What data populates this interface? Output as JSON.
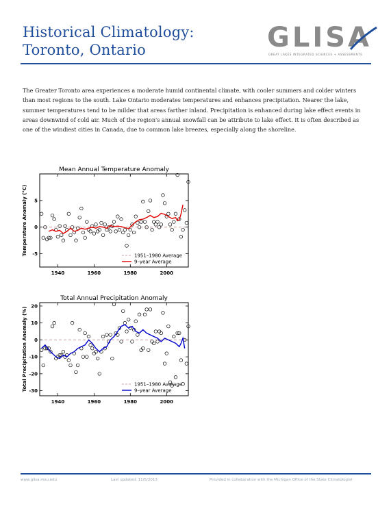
{
  "header": {
    "title_line1": "Historical Climatology:",
    "title_line2": "Toronto, Ontario",
    "logo_text": "GLISA",
    "logo_tagline": "GREAT LAKES INTEGRATED SCIENCES + ASSESSMENTS"
  },
  "intro": "The Greater Toronto area experiences a moderate humid continental climate, with cooler summers and colder winters than most regions to the south. Lake Ontario moderates temperatures and enhances precipitation. Nearer the lake, summer temperatures tend to be milder that areas farther inland. Precipitation is enhanced during lake effect events in areas downwind of cold air. Much of the region's annual snowfall can be attribute to lake effect. It is often described as one of the windiest cities in Canada, due to common lake breezes, especially along the shoreline.",
  "footer": {
    "website": "www.glisa.msu.edu",
    "updated": "Last updated: 11/5/2013",
    "credit": "Provided in collaboration with the Michigan Office of the State Climatologist"
  },
  "colors": {
    "title": "#1f4e9c",
    "temp_line": "#e00000",
    "precip_line": "#0000cc",
    "baseline": "#c8a0a0"
  },
  "chart_data": [
    {
      "type": "scatter",
      "title": "Mean Annual Temperature Anomaly",
      "ylabel": "Temperature Anomaly (°C)",
      "xlabel": "",
      "xlim": [
        1930,
        2012
      ],
      "ylim": [
        -7.5,
        10
      ],
      "xticks": [
        1940,
        1960,
        1980,
        2000
      ],
      "yticks": [
        -5,
        0,
        5
      ],
      "legend": [
        "1951–1980 Average",
        "9–year Average"
      ],
      "legend_position": "bottom-right",
      "baseline": 0,
      "points": [
        [
          1931,
          2.5
        ],
        [
          1932,
          -2.0
        ],
        [
          1933,
          0.0
        ],
        [
          1934,
          -2.3
        ],
        [
          1935,
          -2.0
        ],
        [
          1936,
          -2.0
        ],
        [
          1937,
          2.2
        ],
        [
          1938,
          1.5
        ],
        [
          1939,
          -0.5
        ],
        [
          1940,
          -1.8
        ],
        [
          1941,
          0.2
        ],
        [
          1942,
          -1.5
        ],
        [
          1943,
          -2.5
        ],
        [
          1944,
          0.2
        ],
        [
          1945,
          -0.5
        ],
        [
          1946,
          2.5
        ],
        [
          1947,
          -1.5
        ],
        [
          1948,
          0.0
        ],
        [
          1949,
          -1.0
        ],
        [
          1950,
          -2.5
        ],
        [
          1951,
          -0.2
        ],
        [
          1952,
          1.8
        ],
        [
          1953,
          3.5
        ],
        [
          1954,
          -1.0
        ],
        [
          1955,
          -2.0
        ],
        [
          1956,
          1.0
        ],
        [
          1957,
          -0.5
        ],
        [
          1958,
          -0.8
        ],
        [
          1959,
          0.2
        ],
        [
          1960,
          -1.2
        ],
        [
          1961,
          0.5
        ],
        [
          1962,
          -0.8
        ],
        [
          1963,
          -0.5
        ],
        [
          1964,
          0.8
        ],
        [
          1965,
          -1.5
        ],
        [
          1966,
          0.5
        ],
        [
          1967,
          -0.5
        ],
        [
          1968,
          0.0
        ],
        [
          1969,
          -0.8
        ],
        [
          1970,
          0.2
        ],
        [
          1971,
          1.0
        ],
        [
          1972,
          -0.8
        ],
        [
          1973,
          2.0
        ],
        [
          1974,
          -0.5
        ],
        [
          1975,
          1.5
        ],
        [
          1976,
          -1.0
        ],
        [
          1977,
          -0.5
        ],
        [
          1978,
          -3.5
        ],
        [
          1979,
          -1.5
        ],
        [
          1980,
          -0.5
        ],
        [
          1981,
          0.5
        ],
        [
          1982,
          -1.0
        ],
        [
          1983,
          2.0
        ],
        [
          1984,
          0.8
        ],
        [
          1985,
          0.0
        ],
        [
          1986,
          1.0
        ],
        [
          1987,
          4.8
        ],
        [
          1988,
          1.0
        ],
        [
          1989,
          0.0
        ],
        [
          1990,
          3.0
        ],
        [
          1991,
          5.0
        ],
        [
          1992,
          -0.5
        ],
        [
          1993,
          1.0
        ],
        [
          1994,
          0.5
        ],
        [
          1995,
          1.0
        ],
        [
          1996,
          0.0
        ],
        [
          1997,
          0.5
        ],
        [
          1998,
          6.0
        ],
        [
          1999,
          4.5
        ],
        [
          2000,
          2.0
        ],
        [
          2001,
          2.5
        ],
        [
          2002,
          0.5
        ],
        [
          2003,
          -0.5
        ],
        [
          2004,
          1.0
        ],
        [
          2005,
          2.5
        ],
        [
          2006,
          9.8
        ],
        [
          2007,
          1.5
        ],
        [
          2008,
          -1.8
        ],
        [
          2009,
          -0.5
        ],
        [
          2010,
          3.2
        ],
        [
          2011,
          0.8
        ],
        [
          2012,
          8.5
        ]
      ],
      "moving_average": [
        [
          1935,
          -0.8
        ],
        [
          1937,
          -0.5
        ],
        [
          1939,
          -0.8
        ],
        [
          1941,
          -0.6
        ],
        [
          1943,
          -1.2
        ],
        [
          1945,
          -0.8
        ],
        [
          1947,
          -0.2
        ],
        [
          1949,
          -0.8
        ],
        [
          1951,
          -0.6
        ],
        [
          1953,
          -0.2
        ],
        [
          1955,
          -0.4
        ],
        [
          1957,
          -0.2
        ],
        [
          1959,
          0.0
        ],
        [
          1961,
          -0.2
        ],
        [
          1963,
          0.1
        ],
        [
          1965,
          0.0
        ],
        [
          1967,
          -0.2
        ],
        [
          1969,
          0.3
        ],
        [
          1971,
          0.1
        ],
        [
          1973,
          0.2
        ],
        [
          1975,
          0.1
        ],
        [
          1977,
          -0.1
        ],
        [
          1979,
          -0.3
        ],
        [
          1981,
          0.4
        ],
        [
          1983,
          1.0
        ],
        [
          1985,
          1.4
        ],
        [
          1987,
          1.5
        ],
        [
          1989,
          1.8
        ],
        [
          1991,
          2.2
        ],
        [
          1993,
          1.8
        ],
        [
          1995,
          2.0
        ],
        [
          1997,
          2.6
        ],
        [
          1999,
          2.4
        ],
        [
          2001,
          2.0
        ],
        [
          2003,
          1.6
        ],
        [
          2005,
          1.8
        ],
        [
          2006,
          1.2
        ],
        [
          2007,
          1.4
        ],
        [
          2008,
          2.5
        ],
        [
          2009,
          4.2
        ]
      ]
    },
    {
      "type": "scatter",
      "title": "Total Annual Precipitation Anomaly",
      "ylabel": "Total Precipitation Anomaly (%)",
      "xlabel": "",
      "xlim": [
        1930,
        2012
      ],
      "ylim": [
        -33,
        22
      ],
      "xticks": [
        1940,
        1960,
        1980,
        2000
      ],
      "yticks": [
        -30,
        -20,
        -10,
        0,
        10,
        20
      ],
      "legend": [
        "1951–1980 Average",
        "9–year Average"
      ],
      "legend_position": "bottom-right",
      "baseline": 0,
      "points": [
        [
          1931,
          -6
        ],
        [
          1932,
          -15
        ],
        [
          1933,
          -5
        ],
        [
          1934,
          -5
        ],
        [
          1935,
          -5
        ],
        [
          1936,
          -7
        ],
        [
          1937,
          8
        ],
        [
          1938,
          10
        ],
        [
          1939,
          -11
        ],
        [
          1940,
          -10
        ],
        [
          1941,
          -9
        ],
        [
          1942,
          -9
        ],
        [
          1943,
          -7
        ],
        [
          1944,
          -10
        ],
        [
          1945,
          -9
        ],
        [
          1946,
          -12
        ],
        [
          1947,
          -15
        ],
        [
          1948,
          10
        ],
        [
          1949,
          -8
        ],
        [
          1950,
          -19
        ],
        [
          1951,
          -15
        ],
        [
          1952,
          6
        ],
        [
          1953,
          -5
        ],
        [
          1954,
          -10
        ],
        [
          1955,
          4
        ],
        [
          1956,
          -10
        ],
        [
          1957,
          2
        ],
        [
          1958,
          -3
        ],
        [
          1959,
          -5
        ],
        [
          1960,
          -8
        ],
        [
          1961,
          -7
        ],
        [
          1962,
          -11
        ],
        [
          1963,
          -20
        ],
        [
          1964,
          -7
        ],
        [
          1965,
          2
        ],
        [
          1966,
          -5
        ],
        [
          1967,
          3
        ],
        [
          1968,
          -1
        ],
        [
          1969,
          3
        ],
        [
          1970,
          -11
        ],
        [
          1971,
          21
        ],
        [
          1972,
          4
        ],
        [
          1973,
          3
        ],
        [
          1974,
          7
        ],
        [
          1975,
          -1
        ],
        [
          1976,
          17
        ],
        [
          1977,
          10
        ],
        [
          1978,
          5
        ],
        [
          1979,
          12
        ],
        [
          1980,
          7
        ],
        [
          1981,
          -1
        ],
        [
          1982,
          6
        ],
        [
          1983,
          11
        ],
        [
          1984,
          3
        ],
        [
          1985,
          15
        ],
        [
          1986,
          -6
        ],
        [
          1987,
          -5
        ],
        [
          1988,
          15
        ],
        [
          1989,
          18
        ],
        [
          1990,
          -6
        ],
        [
          1991,
          18
        ],
        [
          1992,
          -1
        ],
        [
          1993,
          -2
        ],
        [
          1994,
          5
        ],
        [
          1995,
          -1
        ],
        [
          1996,
          5
        ],
        [
          1997,
          4
        ],
        [
          1998,
          16
        ],
        [
          1999,
          -14
        ],
        [
          2000,
          -8
        ],
        [
          2001,
          8
        ],
        [
          2002,
          -25
        ],
        [
          2003,
          -27
        ],
        [
          2004,
          2
        ],
        [
          2005,
          -22
        ],
        [
          2006,
          4
        ],
        [
          2007,
          4
        ],
        [
          2008,
          -12
        ],
        [
          2009,
          -26
        ],
        [
          2010,
          0
        ],
        [
          2011,
          -14
        ],
        [
          2012,
          8
        ]
      ],
      "moving_average": [
        [
          1931,
          -5
        ],
        [
          1933,
          -3
        ],
        [
          1935,
          -6
        ],
        [
          1937,
          -8
        ],
        [
          1939,
          -10
        ],
        [
          1941,
          -11
        ],
        [
          1943,
          -9
        ],
        [
          1945,
          -10
        ],
        [
          1947,
          -8
        ],
        [
          1949,
          -7
        ],
        [
          1951,
          -5
        ],
        [
          1953,
          -4
        ],
        [
          1955,
          -3
        ],
        [
          1957,
          0
        ],
        [
          1959,
          -2
        ],
        [
          1961,
          -5
        ],
        [
          1963,
          -7
        ],
        [
          1965,
          -5
        ],
        [
          1967,
          -4
        ],
        [
          1969,
          0
        ],
        [
          1971,
          2
        ],
        [
          1973,
          5
        ],
        [
          1975,
          8
        ],
        [
          1977,
          9
        ],
        [
          1979,
          7
        ],
        [
          1981,
          8
        ],
        [
          1983,
          5
        ],
        [
          1985,
          4
        ],
        [
          1987,
          6
        ],
        [
          1989,
          4
        ],
        [
          1991,
          3
        ],
        [
          1993,
          2
        ],
        [
          1995,
          1
        ],
        [
          1997,
          -1
        ],
        [
          1999,
          1
        ],
        [
          2001,
          0
        ],
        [
          2003,
          -1
        ],
        [
          2005,
          -2
        ],
        [
          2007,
          -4
        ],
        [
          2008,
          -2
        ],
        [
          2009,
          1
        ],
        [
          2010,
          -5
        ]
      ]
    }
  ]
}
